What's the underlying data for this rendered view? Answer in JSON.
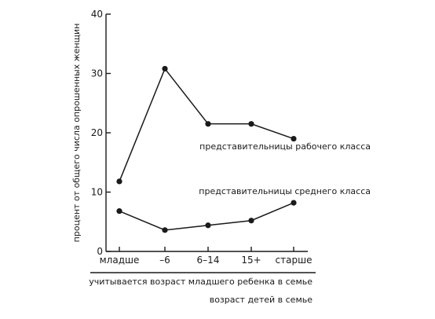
{
  "chart_data": {
    "type": "line",
    "categories": [
      "младше",
      "–6",
      "6–14",
      "15+",
      "старше"
    ],
    "series": [
      {
        "name": "представительницы рабочего класса",
        "values": [
          11.8,
          30.8,
          21.5,
          21.5,
          19.0
        ]
      },
      {
        "name": "представительницы среднего класса",
        "values": [
          6.8,
          3.6,
          4.4,
          5.2,
          8.2
        ]
      }
    ],
    "title": "",
    "xlabel": "учитывается возраст младшего ребенка в семье",
    "xlabel2": "возраст детей в семье",
    "ylabel": "процент от общего числа опрошенных женщин",
    "ylim": [
      0,
      40
    ],
    "yticks": [
      0,
      10,
      20,
      30,
      40
    ],
    "grid": false,
    "legend": "inline-labels"
  }
}
